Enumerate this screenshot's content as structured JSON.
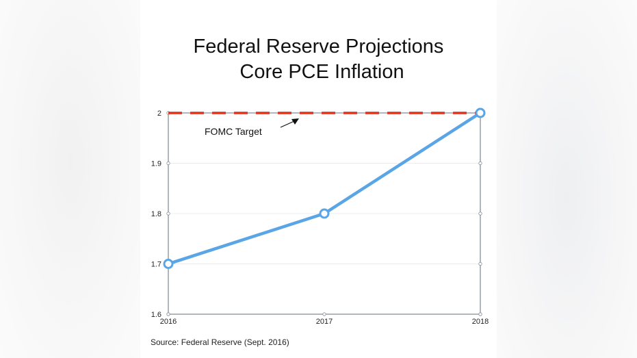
{
  "chart_data": {
    "type": "line",
    "title": "Federal Reserve Projections",
    "subtitle": "Core PCE Inflation",
    "x": [
      "2016",
      "2017",
      "2018"
    ],
    "series": [
      {
        "values": [
          1.7,
          1.8,
          2.0
        ],
        "color": "#5aa5e6"
      }
    ],
    "reference_line": {
      "label": "FOMC Target",
      "value": 2.0,
      "color": "#e0301e",
      "style": "dashed"
    },
    "ylim": [
      1.6,
      2.0
    ],
    "yticks": [
      "1.6",
      "1.7",
      "1.8",
      "1.9",
      "2"
    ],
    "grid": true,
    "xlabel": "",
    "ylabel": ""
  },
  "source": "Source:  Federal Reserve  (Sept. 2016)"
}
